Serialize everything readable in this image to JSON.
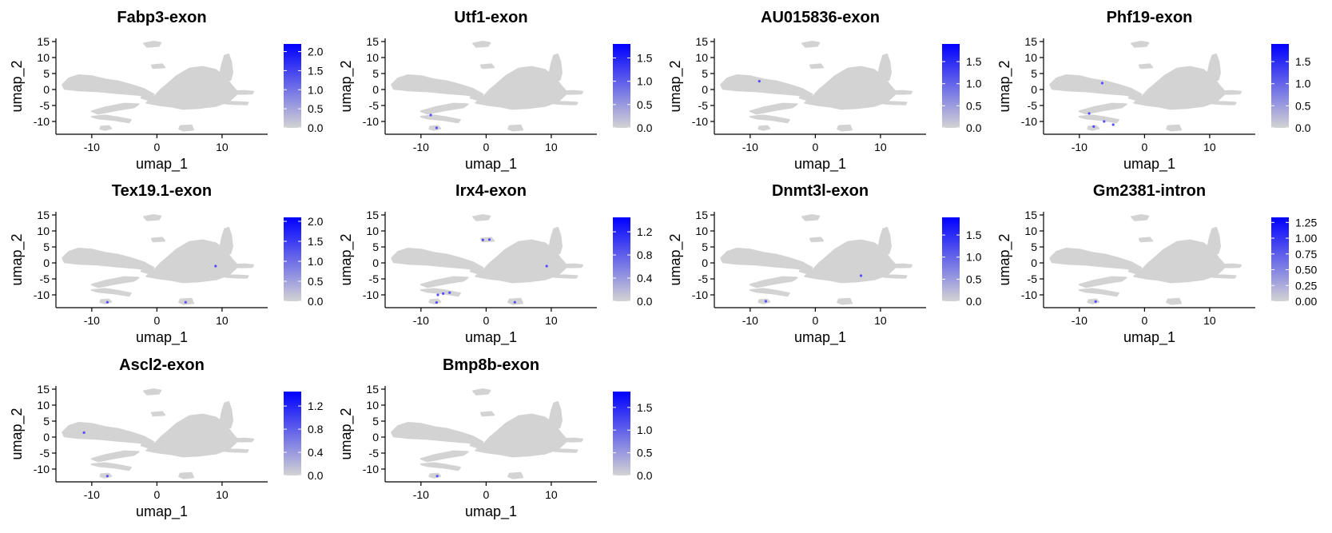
{
  "chart_data": [
    {
      "type": "scatter",
      "title": "Fabp3-exon",
      "xlabel": "umap_1",
      "ylabel": "umap_2",
      "x_ticks": [
        -10,
        0,
        10
      ],
      "y_ticks": [
        15,
        10,
        5,
        0,
        -5,
        -10
      ],
      "colorbar": {
        "min": 0,
        "max": 2.2,
        "ticks": [
          "0.0",
          "0.5",
          "1.0",
          "1.5",
          "2.0"
        ],
        "low_color": "#d3d3d3",
        "high_color": "#0000ff"
      },
      "highlights": []
    },
    {
      "type": "scatter",
      "title": "Utf1-exon",
      "xlabel": "umap_1",
      "ylabel": "umap_2",
      "x_ticks": [
        -10,
        0,
        10
      ],
      "y_ticks": [
        15,
        10,
        5,
        0,
        -5,
        -10
      ],
      "colorbar": {
        "min": 0,
        "max": 1.8,
        "ticks": [
          "0.0",
          "0.5",
          "1.0",
          "1.5"
        ],
        "low_color": "#d3d3d3",
        "high_color": "#0000ff"
      },
      "highlights": [
        [
          -8.5,
          -8
        ],
        [
          -7.6,
          -12
        ]
      ]
    },
    {
      "type": "scatter",
      "title": "AU015836-exon",
      "xlabel": "umap_1",
      "ylabel": "umap_2",
      "x_ticks": [
        -10,
        0,
        10
      ],
      "y_ticks": [
        15,
        10,
        5,
        0,
        -5,
        -10
      ],
      "colorbar": {
        "min": 0,
        "max": 1.9,
        "ticks": [
          "0.0",
          "0.5",
          "1.0",
          "1.5"
        ],
        "low_color": "#d3d3d3",
        "high_color": "#0000ff"
      },
      "highlights": [
        [
          -8.6,
          2.6
        ]
      ]
    },
    {
      "type": "scatter",
      "title": "Phf19-exon",
      "xlabel": "umap_1",
      "ylabel": "umap_2",
      "x_ticks": [
        -10,
        0,
        10
      ],
      "y_ticks": [
        15,
        10,
        5,
        0,
        -5,
        -10
      ],
      "colorbar": {
        "min": 0,
        "max": 1.9,
        "ticks": [
          "0.0",
          "0.5",
          "1.0",
          "1.5"
        ],
        "low_color": "#d3d3d3",
        "high_color": "#0000ff"
      },
      "highlights": [
        [
          -6.5,
          2
        ],
        [
          -4.8,
          -11
        ],
        [
          -8.5,
          -7.5
        ],
        [
          -7.8,
          -11.6
        ],
        [
          -6.2,
          -10
        ]
      ]
    },
    {
      "type": "scatter",
      "title": "Tex19.1-exon",
      "xlabel": "umap_1",
      "ylabel": "umap_2",
      "x_ticks": [
        -10,
        0,
        10
      ],
      "y_ticks": [
        15,
        10,
        5,
        0,
        -5,
        -10
      ],
      "colorbar": {
        "min": 0,
        "max": 2.1,
        "ticks": [
          "0.0",
          "0.5",
          "1.0",
          "1.5",
          "2.0"
        ],
        "low_color": "#d3d3d3",
        "high_color": "#0000ff"
      },
      "highlights": [
        [
          -7.6,
          -12.3
        ],
        [
          4.4,
          -12.3
        ],
        [
          9,
          -1
        ]
      ]
    },
    {
      "type": "scatter",
      "title": "Irx4-exon",
      "xlabel": "umap_1",
      "ylabel": "umap_2",
      "x_ticks": [
        -10,
        0,
        10
      ],
      "y_ticks": [
        15,
        10,
        5,
        0,
        -5,
        -10
      ],
      "colorbar": {
        "min": 0,
        "max": 1.45,
        "ticks": [
          "0.0",
          "0.4",
          "0.8",
          "1.2"
        ],
        "low_color": "#d3d3d3",
        "high_color": "#0000ff"
      },
      "highlights": [
        [
          -0.5,
          7.2
        ],
        [
          0.5,
          7.3
        ],
        [
          9.3,
          -1
        ],
        [
          -5.6,
          -9.3
        ],
        [
          -6.6,
          -9.6
        ],
        [
          -7.4,
          -10
        ],
        [
          -7.6,
          -12.4
        ],
        [
          4.4,
          -12.3
        ]
      ]
    },
    {
      "type": "scatter",
      "title": "Dnmt3l-exon",
      "xlabel": "umap_1",
      "ylabel": "umap_2",
      "x_ticks": [
        -10,
        0,
        10
      ],
      "y_ticks": [
        15,
        10,
        5,
        0,
        -5,
        -10
      ],
      "colorbar": {
        "min": 0,
        "max": 1.9,
        "ticks": [
          "0.0",
          "0.5",
          "1.0",
          "1.5"
        ],
        "low_color": "#d3d3d3",
        "high_color": "#0000ff"
      },
      "highlights": [
        [
          7,
          -4
        ],
        [
          -7.6,
          -12
        ]
      ]
    },
    {
      "type": "scatter",
      "title": "Gm2381-intron",
      "xlabel": "umap_1",
      "ylabel": "umap_2",
      "x_ticks": [
        -10,
        0,
        10
      ],
      "y_ticks": [
        15,
        10,
        5,
        0,
        -5,
        -10
      ],
      "colorbar": {
        "min": 0,
        "max": 1.33,
        "ticks": [
          "0.00",
          "0.25",
          "0.50",
          "0.75",
          "1.00",
          "1.25"
        ],
        "low_color": "#d3d3d3",
        "high_color": "#0000ff"
      },
      "highlights": [
        [
          -7.5,
          -12.1
        ]
      ]
    },
    {
      "type": "scatter",
      "title": "Ascl2-exon",
      "xlabel": "umap_1",
      "ylabel": "umap_2",
      "x_ticks": [
        -10,
        0,
        10
      ],
      "y_ticks": [
        15,
        10,
        5,
        0,
        -5,
        -10
      ],
      "colorbar": {
        "min": 0,
        "max": 1.45,
        "ticks": [
          "0.0",
          "0.4",
          "0.8",
          "1.2"
        ],
        "low_color": "#d3d3d3",
        "high_color": "#0000ff"
      },
      "highlights": [
        [
          -11.2,
          1.4
        ],
        [
          -7.6,
          -12.2
        ]
      ]
    },
    {
      "type": "scatter",
      "title": "Bmp8b-exon",
      "xlabel": "umap_1",
      "ylabel": "umap_2",
      "x_ticks": [
        -10,
        0,
        10
      ],
      "y_ticks": [
        15,
        10,
        5,
        0,
        -5,
        -10
      ],
      "colorbar": {
        "min": 0,
        "max": 1.85,
        "ticks": [
          "0.0",
          "0.5",
          "1.0",
          "1.5"
        ],
        "low_color": "#d3d3d3",
        "high_color": "#0000ff"
      },
      "highlights": [
        [
          -7.5,
          -12.2
        ]
      ]
    }
  ]
}
